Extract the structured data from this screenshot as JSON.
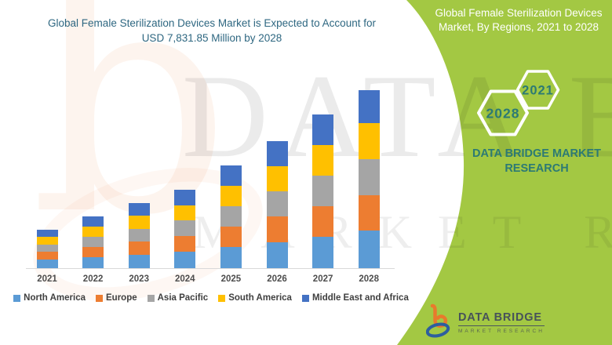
{
  "header": {
    "title_line1": "Global Female Sterilization Devices Market is Expected to Account for",
    "title_line2": "USD 7,831.85 Million by 2028"
  },
  "panel": {
    "title_line1": "Global Female Sterilization Devices",
    "title_line2": "Market, By Regions, 2021 to 2028",
    "hexagon_years": [
      "2028",
      "2021"
    ],
    "brand_line1": "DATA BRIDGE MARKET",
    "brand_line2": "RESEARCH"
  },
  "footer_logo": {
    "name": "DATA BRIDGE",
    "tagline": "MARKET RESEARCH"
  },
  "watermark": {
    "line1": "DATA BRIDGE",
    "line2": "MARKET RESEARCH"
  },
  "colors": {
    "green_panel": "#A3C843",
    "left_title_text": "#2E6781",
    "panel_title_text": "#FFFFFF",
    "accent_teal": "#2C7A74",
    "axis_label": "#4D4D4D",
    "axis_line": "#D9D9D9"
  },
  "chart_data": {
    "type": "bar",
    "stacked": true,
    "title": "Global Female Sterilization Devices Market is Expected to Account for USD 7,831.85 Million by 2028",
    "unit": "USD Million",
    "categories": [
      "2021",
      "2022",
      "2023",
      "2024",
      "2025",
      "2026",
      "2027",
      "2028"
    ],
    "series": [
      {
        "name": "North America",
        "color": "#5B9BD5",
        "values": [
          380,
          470,
          600,
          730,
          930,
          1150,
          1390,
          1640
        ]
      },
      {
        "name": "Europe",
        "color": "#ED7D31",
        "values": [
          345,
          455,
          560,
          700,
          890,
          1115,
          1345,
          1580
        ]
      },
      {
        "name": "Asia Pacific",
        "color": "#A5A5A5",
        "values": [
          310,
          445,
          580,
          660,
          900,
          1110,
          1330,
          1560
        ]
      },
      {
        "name": "South America",
        "color": "#FFC000",
        "values": [
          345,
          465,
          570,
          670,
          905,
          1120,
          1355,
          1590
        ]
      },
      {
        "name": "Middle East and Africa",
        "color": "#4472C4",
        "values": [
          310,
          425,
          550,
          680,
          885,
          1105,
          1340,
          1461.85
        ]
      }
    ],
    "totals_by_year": [
      1690,
      2260,
      2860,
      3440,
      4510,
      5600,
      6760,
      7831.85
    ],
    "xlabel": "",
    "ylabel": "",
    "ylim": [
      0,
      8000
    ],
    "grid": false,
    "y_axis_visible": false,
    "legend_position": "bottom"
  }
}
